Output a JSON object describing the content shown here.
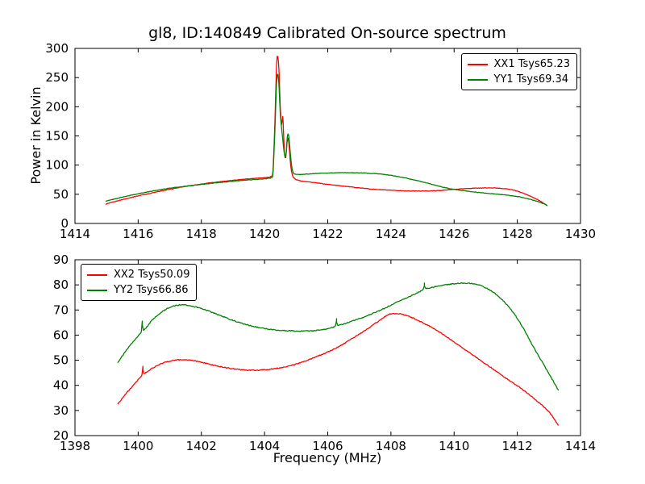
{
  "figure": {
    "background": "#ffffff",
    "text_color": "#000000"
  },
  "chart_data": [
    {
      "type": "line",
      "title": "gl8, ID:140849 Calibrated On-source spectrum",
      "xlabel": "",
      "ylabel": "Power in Kelvin",
      "xlim": [
        1414,
        1430
      ],
      "ylim": [
        0,
        300
      ],
      "xticks": [
        1414,
        1416,
        1418,
        1420,
        1422,
        1424,
        1426,
        1428,
        1430
      ],
      "yticks": [
        0,
        50,
        100,
        150,
        200,
        250,
        300
      ],
      "grid": false,
      "legend_position": "upper right",
      "series": [
        {
          "name": "XX1",
          "label": "XX1 Tsys65.23",
          "color": "#ff0000",
          "noise": 0.8,
          "points": [
            [
              1414.97,
              33
            ],
            [
              1415.3,
              38
            ],
            [
              1415.7,
              43.5
            ],
            [
              1416.1,
              48.5
            ],
            [
              1416.5,
              53
            ],
            [
              1417.0,
              58.5
            ],
            [
              1417.5,
              63.5
            ],
            [
              1418.0,
              67.5
            ],
            [
              1418.5,
              71
            ],
            [
              1419.0,
              74
            ],
            [
              1419.5,
              76.5
            ],
            [
              1419.9,
              78
            ],
            [
              1420.1,
              79
            ],
            [
              1420.2,
              80.5
            ],
            [
              1420.27,
              92
            ],
            [
              1420.33,
              180
            ],
            [
              1420.38,
              272
            ],
            [
              1420.42,
              286
            ],
            [
              1420.46,
              258
            ],
            [
              1420.5,
              196
            ],
            [
              1420.54,
              170
            ],
            [
              1420.575,
              183
            ],
            [
              1420.6,
              158
            ],
            [
              1420.63,
              120
            ],
            [
              1420.67,
              113
            ],
            [
              1420.71,
              138
            ],
            [
              1420.75,
              146
            ],
            [
              1420.79,
              124
            ],
            [
              1420.83,
              98
            ],
            [
              1420.88,
              83
            ],
            [
              1420.95,
              77
            ],
            [
              1421.1,
              73.5
            ],
            [
              1421.5,
              70.5
            ],
            [
              1422.0,
              67
            ],
            [
              1422.5,
              64
            ],
            [
              1423.0,
              61
            ],
            [
              1423.5,
              58.5
            ],
            [
              1424.0,
              56.8
            ],
            [
              1424.5,
              55.8
            ],
            [
              1425.0,
              55.6
            ],
            [
              1425.5,
              56.3
            ],
            [
              1425.9,
              58
            ],
            [
              1426.4,
              59.8
            ],
            [
              1426.9,
              60.8
            ],
            [
              1427.4,
              60.5
            ],
            [
              1427.8,
              58
            ],
            [
              1428.1,
              53.5
            ],
            [
              1428.4,
              47
            ],
            [
              1428.7,
              39
            ],
            [
              1428.95,
              30.5
            ]
          ]
        },
        {
          "name": "YY1",
          "label": "YY1 Tsys69.34",
          "color": "#008000",
          "noise": 0.8,
          "points": [
            [
              1414.97,
              38
            ],
            [
              1415.3,
              42.5
            ],
            [
              1415.7,
              47.5
            ],
            [
              1416.1,
              52
            ],
            [
              1416.5,
              56
            ],
            [
              1417.0,
              60.5
            ],
            [
              1417.5,
              63.8
            ],
            [
              1418.0,
              66.8
            ],
            [
              1418.5,
              69.8
            ],
            [
              1419.0,
              72.3
            ],
            [
              1419.5,
              74.5
            ],
            [
              1419.9,
              76
            ],
            [
              1420.1,
              77
            ],
            [
              1420.2,
              78.5
            ],
            [
              1420.27,
              88
            ],
            [
              1420.33,
              165
            ],
            [
              1420.38,
              240
            ],
            [
              1420.42,
              256
            ],
            [
              1420.46,
              232
            ],
            [
              1420.5,
              186
            ],
            [
              1420.55,
              158
            ],
            [
              1420.6,
              132
            ],
            [
              1420.64,
              116
            ],
            [
              1420.68,
              118
            ],
            [
              1420.72,
              148
            ],
            [
              1420.76,
              152
            ],
            [
              1420.8,
              130
            ],
            [
              1420.85,
              102
            ],
            [
              1420.9,
              88
            ],
            [
              1421.0,
              84
            ],
            [
              1421.3,
              84.5
            ],
            [
              1421.7,
              85.8
            ],
            [
              1422.1,
              86.6
            ],
            [
              1422.5,
              87
            ],
            [
              1422.9,
              86.8
            ],
            [
              1423.3,
              86
            ],
            [
              1423.7,
              84.5
            ],
            [
              1424.1,
              81.5
            ],
            [
              1424.5,
              77.5
            ],
            [
              1424.9,
              72.5
            ],
            [
              1425.3,
              67
            ],
            [
              1425.7,
              61.5
            ],
            [
              1426.0,
              58.5
            ],
            [
              1426.4,
              55.5
            ],
            [
              1426.9,
              52.5
            ],
            [
              1427.4,
              50
            ],
            [
              1427.9,
              47
            ],
            [
              1428.2,
              44
            ],
            [
              1428.5,
              40
            ],
            [
              1428.75,
              35.5
            ],
            [
              1428.95,
              31
            ]
          ]
        }
      ]
    },
    {
      "type": "line",
      "title": "",
      "xlabel": "Frequency (MHz)",
      "ylabel": "",
      "xlim": [
        1398,
        1414
      ],
      "ylim": [
        20,
        90
      ],
      "xticks": [
        1398,
        1400,
        1402,
        1404,
        1406,
        1408,
        1410,
        1412,
        1414
      ],
      "yticks": [
        20,
        30,
        40,
        50,
        60,
        70,
        80,
        90
      ],
      "grid": false,
      "legend_position": "upper left",
      "series": [
        {
          "name": "XX2",
          "label": "XX2 Tsys50.09",
          "color": "#ff0000",
          "noise": 0.35,
          "points": [
            [
              1399.35,
              32.5
            ],
            [
              1399.6,
              36.5
            ],
            [
              1399.85,
              40
            ],
            [
              1400.05,
              43
            ],
            [
              1400.12,
              44.2
            ],
            [
              1400.15,
              47.5
            ],
            [
              1400.18,
              44.8
            ],
            [
              1400.45,
              46.8
            ],
            [
              1400.75,
              48.7
            ],
            [
              1401.05,
              49.8
            ],
            [
              1401.35,
              50.2
            ],
            [
              1401.65,
              50
            ],
            [
              1402.0,
              49.2
            ],
            [
              1402.4,
              48
            ],
            [
              1402.8,
              47
            ],
            [
              1403.2,
              46.3
            ],
            [
              1403.6,
              46
            ],
            [
              1404.0,
              46.2
            ],
            [
              1404.4,
              46.8
            ],
            [
              1404.8,
              47.8
            ],
            [
              1405.2,
              49.3
            ],
            [
              1405.6,
              51.2
            ],
            [
              1406.0,
              53.3
            ],
            [
              1406.4,
              55.8
            ],
            [
              1406.8,
              58.8
            ],
            [
              1407.2,
              62
            ],
            [
              1407.6,
              65.5
            ],
            [
              1407.95,
              68.3
            ],
            [
              1408.3,
              68.4
            ],
            [
              1408.6,
              67.3
            ],
            [
              1409.0,
              65
            ],
            [
              1409.4,
              62.3
            ],
            [
              1409.8,
              59
            ],
            [
              1410.2,
              55.5
            ],
            [
              1410.6,
              52
            ],
            [
              1411.0,
              48.5
            ],
            [
              1411.4,
              45
            ],
            [
              1411.8,
              41.5
            ],
            [
              1412.2,
              38
            ],
            [
              1412.6,
              34
            ],
            [
              1413.0,
              29.5
            ],
            [
              1413.3,
              24
            ]
          ]
        },
        {
          "name": "YY2",
          "label": "YY2 Tsys66.86",
          "color": "#008000",
          "noise": 0.35,
          "points": [
            [
              1399.35,
              49
            ],
            [
              1399.6,
              53.5
            ],
            [
              1399.85,
              57.5
            ],
            [
              1400.05,
              60.5
            ],
            [
              1400.1,
              61.3
            ],
            [
              1400.13,
              65.5
            ],
            [
              1400.17,
              62
            ],
            [
              1400.45,
              66
            ],
            [
              1400.75,
              69.2
            ],
            [
              1401.05,
              71.3
            ],
            [
              1401.35,
              72
            ],
            [
              1401.65,
              71.7
            ],
            [
              1402.0,
              70.6
            ],
            [
              1402.4,
              68.8
            ],
            [
              1402.8,
              66.8
            ],
            [
              1403.2,
              65
            ],
            [
              1403.6,
              63.6
            ],
            [
              1404.0,
              62.6
            ],
            [
              1404.4,
              62
            ],
            [
              1404.8,
              61.7
            ],
            [
              1405.2,
              61.6
            ],
            [
              1405.6,
              61.8
            ],
            [
              1406.0,
              62.6
            ],
            [
              1406.24,
              63.6
            ],
            [
              1406.28,
              66.4
            ],
            [
              1406.32,
              64
            ],
            [
              1406.7,
              65.3
            ],
            [
              1407.1,
              67
            ],
            [
              1407.5,
              69
            ],
            [
              1407.9,
              71.3
            ],
            [
              1408.3,
              73.8
            ],
            [
              1408.7,
              76
            ],
            [
              1409.02,
              78.3
            ],
            [
              1409.06,
              80.6
            ],
            [
              1409.1,
              78.6
            ],
            [
              1409.5,
              79.6
            ],
            [
              1409.9,
              80.3
            ],
            [
              1410.3,
              80.7
            ],
            [
              1410.7,
              80.2
            ],
            [
              1411.0,
              78.8
            ],
            [
              1411.3,
              76.5
            ],
            [
              1411.6,
              73
            ],
            [
              1411.9,
              68.5
            ],
            [
              1412.2,
              62.5
            ],
            [
              1412.5,
              55.5
            ],
            [
              1412.8,
              49
            ],
            [
              1413.1,
              42.5
            ],
            [
              1413.3,
              38
            ]
          ]
        }
      ]
    }
  ]
}
